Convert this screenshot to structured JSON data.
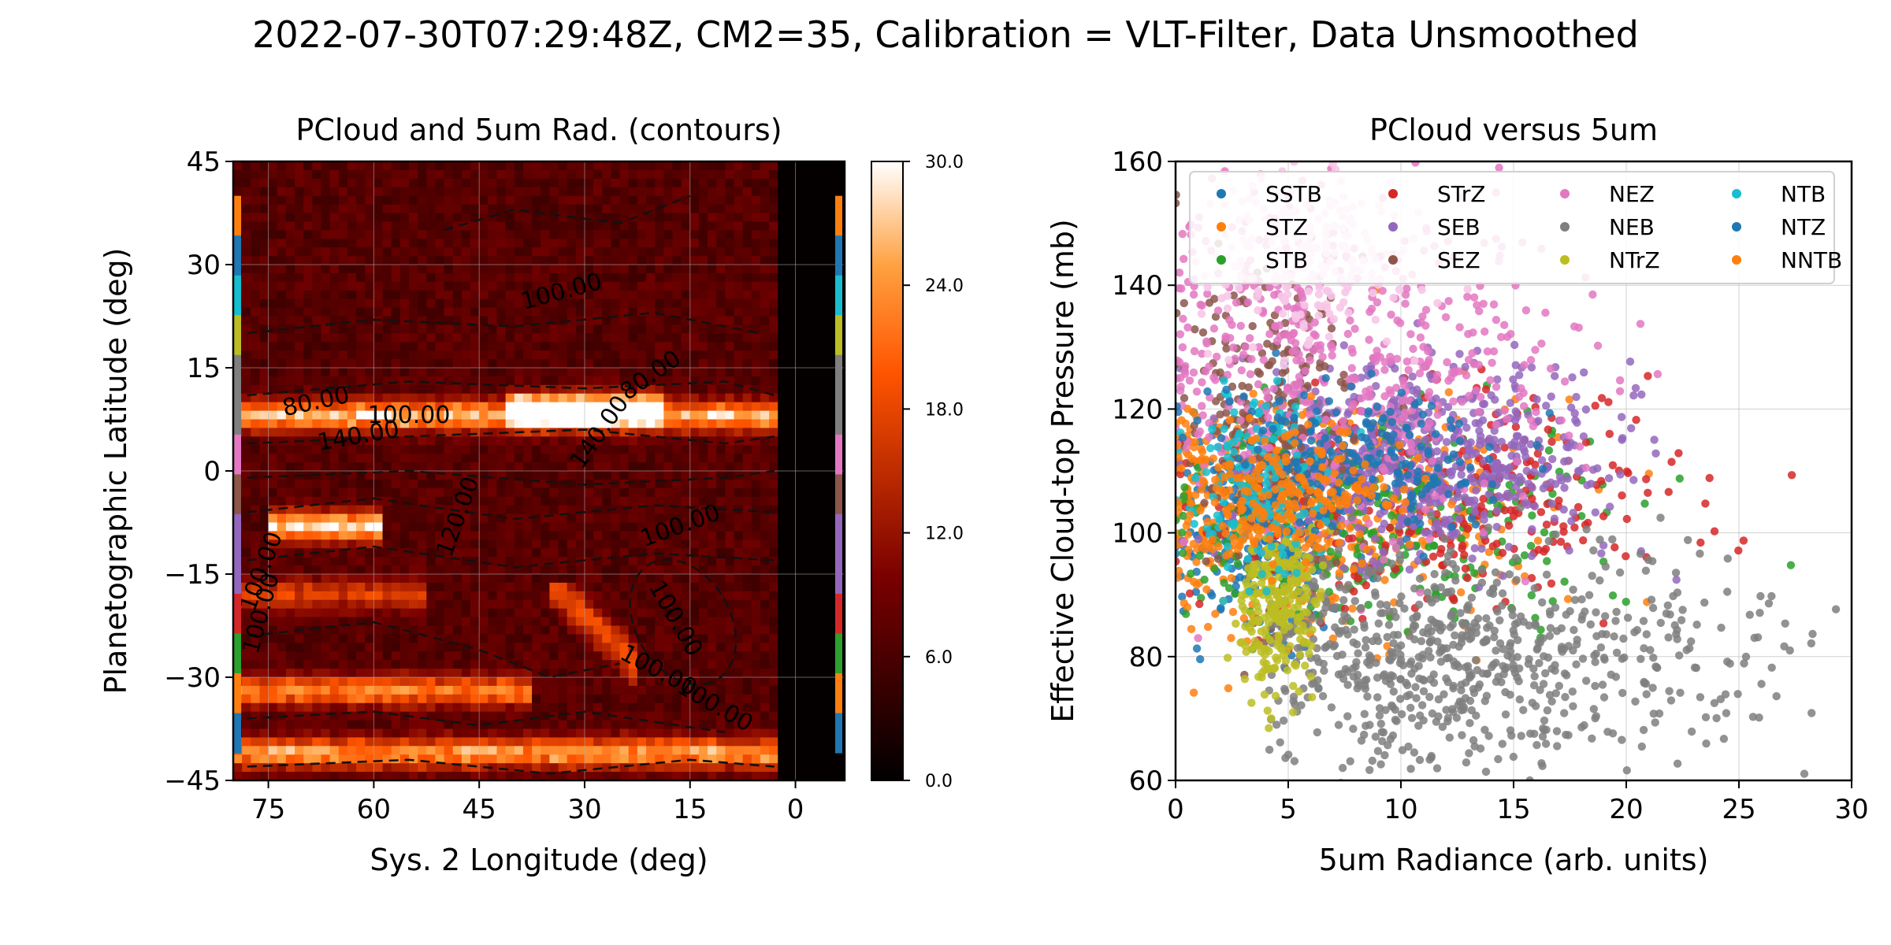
{
  "figure": {
    "title": "2022-07-30T07:29:48Z, CM2=35, Calibration = VLT-Filter, Data Unsmoothed"
  },
  "chart_data": [
    {
      "type": "heatmap",
      "title": "PCloud and 5um Rad. (contours)",
      "xlabel": "Sys. 2 Longitude (deg)",
      "ylabel": "Planetographic Latitude (deg)",
      "xlim": [
        80,
        -7
      ],
      "ylim": [
        -45,
        45
      ],
      "xticks": [
        "75",
        "60",
        "45",
        "30",
        "15",
        "0"
      ],
      "xtick_values": [
        75,
        60,
        45,
        30,
        15,
        0
      ],
      "yticks": [
        "45",
        "30",
        "15",
        "0",
        "−15",
        "−30",
        "−45"
      ],
      "ytick_values": [
        45,
        30,
        15,
        0,
        -15,
        -30,
        -45
      ],
      "grid": true,
      "colormap": "gist_heat",
      "colorbar": {
        "ticks": [
          "30.0",
          "24.0",
          "18.0",
          "12.0",
          "6.0",
          "0.0"
        ],
        "tick_values": [
          30,
          24,
          18,
          12,
          6,
          0
        ],
        "range": [
          0,
          30
        ]
      },
      "bright_bands": [
        {
          "lat": 8,
          "lon_from": 78,
          "lon_to": 2,
          "intensity": 26
        },
        {
          "lat": 9,
          "lon_from": 38,
          "lon_to": 22,
          "intensity": 30
        },
        {
          "lat": -8,
          "lon_from": 72,
          "lon_to": 62,
          "intensity": 28
        },
        {
          "lat": -18,
          "lon_from": 78,
          "lon_to": 55,
          "intensity": 16
        },
        {
          "lat": -32,
          "lon_from": 78,
          "lon_to": 40,
          "intensity": 22
        },
        {
          "lat": -41,
          "lon_from": 80,
          "lon_to": 5,
          "intensity": 24
        }
      ],
      "contour_labels": [
        "100.00",
        "80.00",
        "100.00",
        "140.00",
        "80.00",
        "140.00",
        "120.00",
        "100.00",
        "100.00",
        "100.00",
        "100.00",
        "100.00",
        "100.00"
      ],
      "band_strip_colors": [
        "#ff7f0e",
        "#1f77b4",
        "#17becf",
        "#bcbd22",
        "#7f7f7f",
        "#7f7f7f",
        "#e377c2",
        "#8c564b",
        "#9467bd",
        "#9467bd",
        "#d62728",
        "#2ca02c",
        "#ff7f0e",
        "#1f77b4"
      ]
    },
    {
      "type": "scatter",
      "title": "PCloud versus 5um",
      "xlabel": "5um Radiance (arb. units)",
      "ylabel": "Effective Cloud-top Pressure (mb)",
      "xlim": [
        0,
        30
      ],
      "ylim": [
        60,
        160
      ],
      "xticks": [
        "0",
        "5",
        "10",
        "15",
        "20",
        "25",
        "30"
      ],
      "xtick_values": [
        0,
        5,
        10,
        15,
        20,
        25,
        30
      ],
      "yticks": [
        "160",
        "140",
        "120",
        "100",
        "80",
        "60"
      ],
      "ytick_values": [
        160,
        140,
        120,
        100,
        80,
        60
      ],
      "grid": true,
      "legend_position": "top",
      "series": [
        {
          "name": "SSTB",
          "color": "#1f77b4",
          "cx": 4.0,
          "cy": 102,
          "sx": 1.8,
          "sy": 9
        },
        {
          "name": "STZ",
          "color": "#ff7f0e",
          "cx": 5.5,
          "cy": 104,
          "sx": 4.5,
          "sy": 10
        },
        {
          "name": "STB",
          "color": "#2ca02c",
          "cx": 9.0,
          "cy": 102,
          "sx": 5.0,
          "sy": 9
        },
        {
          "name": "STrZ",
          "color": "#d62728",
          "cx": 12.0,
          "cy": 105,
          "sx": 5.5,
          "sy": 9
        },
        {
          "name": "SEB",
          "color": "#9467bd",
          "cx": 11.0,
          "cy": 112,
          "sx": 4.0,
          "sy": 8
        },
        {
          "name": "SEZ",
          "color": "#8c564b",
          "cx": 4.0,
          "cy": 118,
          "sx": 1.8,
          "sy": 14
        },
        {
          "name": "NEZ",
          "color": "#e377c2",
          "cx": 8.0,
          "cy": 128,
          "sx": 5.0,
          "sy": 14
        },
        {
          "name": "NEB",
          "color": "#7f7f7f",
          "cx": 13.0,
          "cy": 82,
          "sx": 6.5,
          "sy": 9
        },
        {
          "name": "NTrZ",
          "color": "#bcbd22",
          "cx": 4.5,
          "cy": 88,
          "sx": 0.9,
          "sy": 7
        },
        {
          "name": "NTB",
          "color": "#17becf",
          "cx": 3.8,
          "cy": 108,
          "sx": 1.5,
          "sy": 8
        },
        {
          "name": "NTZ",
          "color": "#1f77b4",
          "cx": 8.5,
          "cy": 112,
          "sx": 3.0,
          "sy": 6
        },
        {
          "name": "NNTB",
          "color": "#ff7f0e",
          "cx": 5.0,
          "cy": 106,
          "sx": 2.5,
          "sy": 6
        }
      ]
    }
  ]
}
